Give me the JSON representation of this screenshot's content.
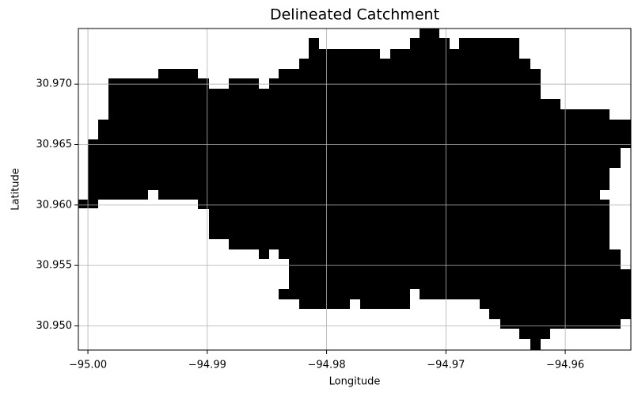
{
  "chart_data": {
    "type": "map",
    "title": "Delineated Catchment",
    "x_label": "Longitude",
    "y_label": "Latitude",
    "xlim": [
      -95.0008,
      -94.9545
    ],
    "ylim": [
      30.948,
      30.9746
    ],
    "xticks": [
      {
        "value": -95.0,
        "label": "−95.00"
      },
      {
        "value": -94.99,
        "label": "−94.99"
      },
      {
        "value": -94.98,
        "label": "−94.98"
      },
      {
        "value": -94.97,
        "label": "−94.97"
      },
      {
        "value": -94.96,
        "label": "−94.96"
      }
    ],
    "yticks": [
      {
        "value": 30.95,
        "label": "30.950"
      },
      30.955,
      {
        "value": 30.96,
        "label": "30.960"
      },
      30.965,
      {
        "value": 30.97,
        "label": "30.970"
      }
    ],
    "grid": true,
    "color": "#000000"
  }
}
